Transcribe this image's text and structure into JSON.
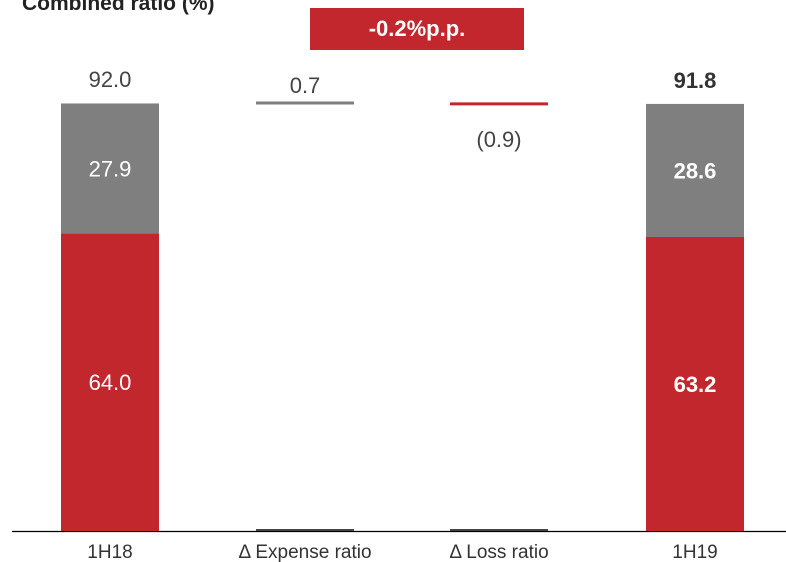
{
  "chart_data": {
    "type": "bar",
    "subtype": "waterfall-stacked",
    "title": "Combined ratio (%)",
    "badge": "-0.2%p.p.",
    "categories": [
      "1H18",
      "Δ Expense ratio",
      "Δ Loss ratio",
      "1H19"
    ],
    "colors": {
      "loss": "#c1272d",
      "expense": "#7f7f7f",
      "axis": "#000000"
    },
    "totals": [
      {
        "category": "1H18",
        "total": 92.0,
        "total_label": "92.0",
        "segments": [
          {
            "name": "loss",
            "value": 64.0,
            "label": "64.0"
          },
          {
            "name": "expense",
            "value": 27.9,
            "label": "27.9"
          }
        ],
        "bold": false
      },
      {
        "category": "1H19",
        "total": 91.8,
        "total_label": "91.8",
        "segments": [
          {
            "name": "loss",
            "value": 63.2,
            "label": "63.2"
          },
          {
            "name": "expense",
            "value": 28.6,
            "label": "28.6"
          }
        ],
        "bold": true
      }
    ],
    "deltas": [
      {
        "category": "Δ Expense ratio",
        "value": 0.7,
        "label": "0.7",
        "level": 92.0,
        "color": "#7f7f7f"
      },
      {
        "category": "Δ Loss ratio",
        "value": -0.9,
        "label": "(0.9)",
        "level": 91.8,
        "color": "#c1272d"
      }
    ],
    "ylim": [
      0,
      92.0
    ],
    "grid": false,
    "legend": "none"
  }
}
